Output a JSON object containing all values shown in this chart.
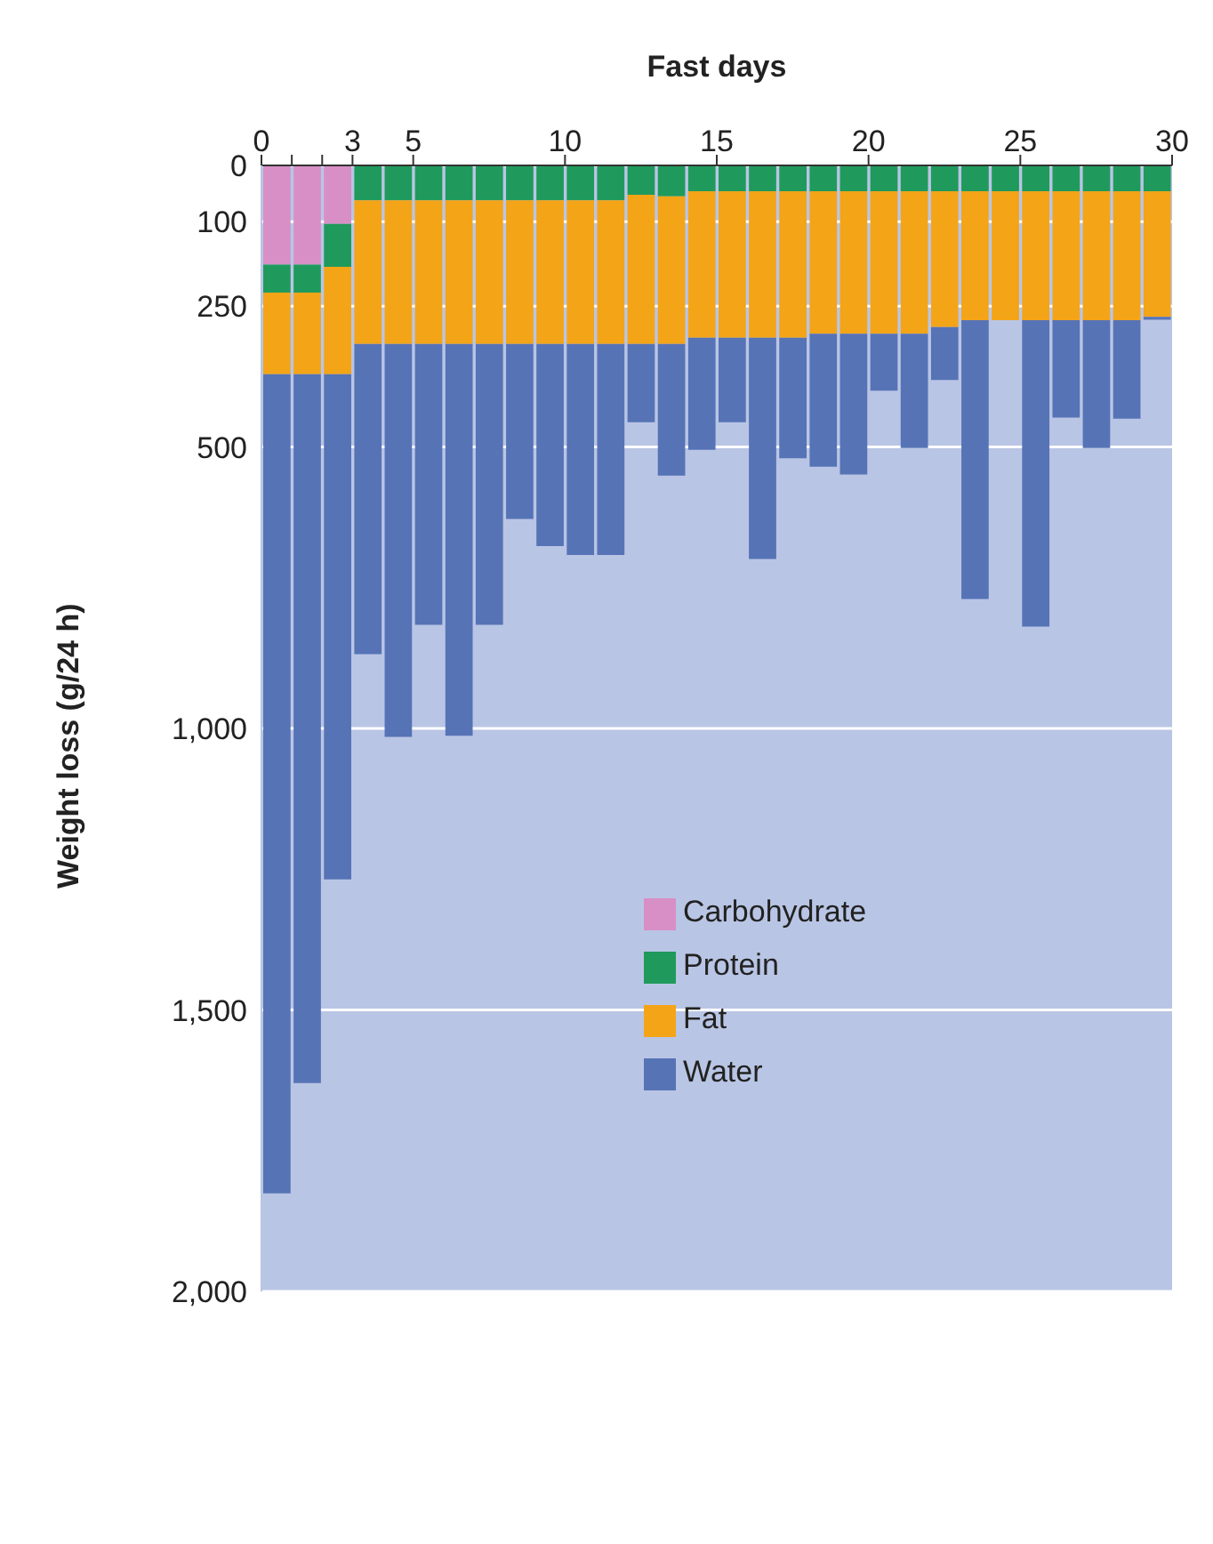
{
  "chart_data": {
    "type": "bar",
    "stacked": true,
    "xlabel": "Fast days",
    "ylabel": "Weight loss (g/24 h)",
    "x": [
      0.5,
      1.5,
      2.5,
      3.5,
      4.5,
      5.5,
      6.5,
      7.5,
      8.5,
      9.5,
      10.5,
      11.5,
      12.5,
      13.5,
      14.5,
      15.5,
      16.5,
      17.5,
      18.5,
      19.5,
      20.5,
      21.5,
      22.5,
      23.5,
      24.5,
      25.5,
      26.5,
      27.5,
      28.5,
      29.5
    ],
    "xlim": [
      0,
      30
    ],
    "xticks": [
      0,
      {
        "value": 1,
        "label": null
      },
      {
        "value": 2,
        "label": null
      },
      3,
      5,
      10,
      15,
      20,
      25,
      30
    ],
    "ylim": [
      2000,
      0
    ],
    "yticks": [
      0,
      100,
      250,
      500,
      {
        "value": 1000,
        "label": "1,000"
      },
      {
        "value": 1500,
        "label": "1,500"
      },
      {
        "value": 2000,
        "label": "2,000"
      }
    ],
    "grid": "y",
    "legend": "right",
    "series": [
      {
        "name": "Carbohydrate",
        "color": "#d88fc6",
        "values": [
          176,
          176,
          104,
          0,
          0,
          0,
          0,
          0,
          0,
          0,
          0,
          0,
          0,
          0,
          0,
          0,
          0,
          0,
          0,
          0,
          0,
          0,
          0,
          0,
          0,
          0,
          0,
          0,
          0,
          0
        ]
      },
      {
        "name": "Protein",
        "color": "#1f9a5c",
        "values": [
          50,
          50,
          76,
          62,
          62,
          62,
          62,
          62,
          62,
          62,
          62,
          62,
          52,
          55,
          46,
          46,
          46,
          46,
          46,
          46,
          46,
          46,
          46,
          46,
          46,
          46,
          46,
          46,
          46,
          46
        ]
      },
      {
        "name": "Fat",
        "color": "#f4a417",
        "values": [
          145,
          145,
          191,
          255,
          255,
          255,
          255,
          255,
          255,
          255,
          255,
          255,
          265,
          262,
          260,
          260,
          260,
          260,
          253,
          253,
          253,
          253,
          241,
          229,
          229,
          229,
          229,
          229,
          229,
          223
        ]
      },
      {
        "name": "Water",
        "color": "#5673b6",
        "values": [
          1455,
          1259,
          897,
          551,
          698,
          499,
          696,
          499,
          311,
          359,
          375,
          375,
          139,
          234,
          199,
          150,
          393,
          214,
          236,
          250,
          101,
          203,
          94,
          495,
          0,
          544,
          173,
          227,
          175,
          5
        ]
      }
    ]
  }
}
